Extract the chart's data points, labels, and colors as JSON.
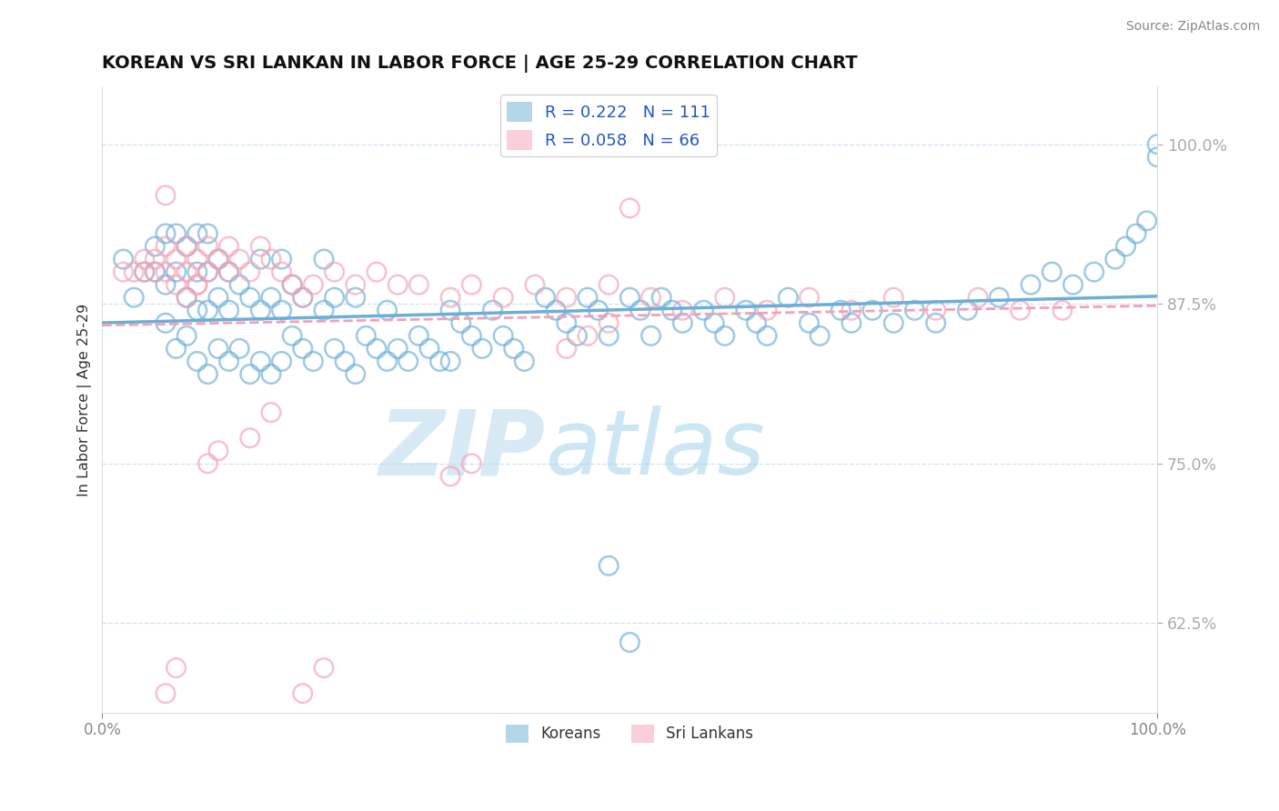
{
  "title": "KOREAN VS SRI LANKAN IN LABOR FORCE | AGE 25-29 CORRELATION CHART",
  "source_text": "Source: ZipAtlas.com",
  "ylabel": "In Labor Force | Age 25-29",
  "xlim": [
    0.0,
    1.0
  ],
  "ylim": [
    0.555,
    1.045
  ],
  "yticks": [
    0.625,
    0.75,
    0.875,
    1.0
  ],
  "ytick_labels": [
    "62.5%",
    "75.0%",
    "87.5%",
    "100.0%"
  ],
  "xticks": [
    0.0,
    1.0
  ],
  "xtick_labels": [
    "0.0%",
    "100.0%"
  ],
  "korean_color": "#6baed6",
  "srilanka_color": "#f4a0b5",
  "korean_R": 0.222,
  "korean_N": 111,
  "srilanka_R": 0.058,
  "srilanka_N": 66,
  "watermark_zip": "ZIP",
  "watermark_atlas": "atlas",
  "background_color": "#ffffff",
  "legend_label_korean": "Koreans",
  "legend_label_srilanka": "Sri Lankans",
  "title_fontsize": 14,
  "tick_color": "#4169e1",
  "grid_color": "#c8dff0",
  "korean_points_x": [
    0.02,
    0.03,
    0.04,
    0.05,
    0.05,
    0.06,
    0.06,
    0.06,
    0.07,
    0.07,
    0.07,
    0.08,
    0.08,
    0.08,
    0.09,
    0.09,
    0.09,
    0.09,
    0.1,
    0.1,
    0.1,
    0.1,
    0.11,
    0.11,
    0.11,
    0.12,
    0.12,
    0.12,
    0.13,
    0.13,
    0.14,
    0.14,
    0.15,
    0.15,
    0.15,
    0.16,
    0.16,
    0.17,
    0.17,
    0.17,
    0.18,
    0.18,
    0.19,
    0.19,
    0.2,
    0.21,
    0.21,
    0.22,
    0.22,
    0.23,
    0.24,
    0.24,
    0.25,
    0.26,
    0.27,
    0.27,
    0.28,
    0.29,
    0.3,
    0.31,
    0.32,
    0.33,
    0.33,
    0.34,
    0.35,
    0.36,
    0.37,
    0.38,
    0.39,
    0.4,
    0.42,
    0.43,
    0.44,
    0.45,
    0.46,
    0.47,
    0.48,
    0.5,
    0.51,
    0.52,
    0.53,
    0.54,
    0.55,
    0.57,
    0.58,
    0.59,
    0.61,
    0.62,
    0.63,
    0.65,
    0.67,
    0.68,
    0.7,
    0.71,
    0.73,
    0.75,
    0.77,
    0.79,
    0.82,
    0.85,
    0.88,
    0.9,
    0.92,
    0.94,
    0.96,
    0.97,
    0.98,
    0.99,
    1.0,
    1.0,
    0.48,
    0.5
  ],
  "korean_points_y": [
    0.91,
    0.88,
    0.9,
    0.9,
    0.92,
    0.86,
    0.89,
    0.93,
    0.84,
    0.9,
    0.93,
    0.85,
    0.88,
    0.92,
    0.83,
    0.87,
    0.9,
    0.93,
    0.82,
    0.87,
    0.9,
    0.93,
    0.84,
    0.88,
    0.91,
    0.83,
    0.87,
    0.9,
    0.84,
    0.89,
    0.82,
    0.88,
    0.83,
    0.87,
    0.91,
    0.82,
    0.88,
    0.83,
    0.87,
    0.91,
    0.85,
    0.89,
    0.84,
    0.88,
    0.83,
    0.87,
    0.91,
    0.84,
    0.88,
    0.83,
    0.82,
    0.88,
    0.85,
    0.84,
    0.83,
    0.87,
    0.84,
    0.83,
    0.85,
    0.84,
    0.83,
    0.87,
    0.83,
    0.86,
    0.85,
    0.84,
    0.87,
    0.85,
    0.84,
    0.83,
    0.88,
    0.87,
    0.86,
    0.85,
    0.88,
    0.87,
    0.85,
    0.88,
    0.87,
    0.85,
    0.88,
    0.87,
    0.86,
    0.87,
    0.86,
    0.85,
    0.87,
    0.86,
    0.85,
    0.88,
    0.86,
    0.85,
    0.87,
    0.86,
    0.87,
    0.86,
    0.87,
    0.86,
    0.87,
    0.88,
    0.89,
    0.9,
    0.89,
    0.9,
    0.91,
    0.92,
    0.93,
    0.94,
    0.99,
    1.0,
    0.67,
    0.61
  ],
  "srilanka_points_x": [
    0.02,
    0.03,
    0.04,
    0.04,
    0.05,
    0.05,
    0.06,
    0.06,
    0.07,
    0.07,
    0.08,
    0.08,
    0.09,
    0.09,
    0.1,
    0.1,
    0.11,
    0.12,
    0.12,
    0.13,
    0.14,
    0.15,
    0.16,
    0.17,
    0.18,
    0.19,
    0.2,
    0.22,
    0.24,
    0.26,
    0.28,
    0.3,
    0.33,
    0.35,
    0.38,
    0.41,
    0.44,
    0.48,
    0.52,
    0.55,
    0.59,
    0.63,
    0.67,
    0.71,
    0.75,
    0.79,
    0.83,
    0.87,
    0.91,
    0.44,
    0.46,
    0.48,
    0.5,
    0.33,
    0.35,
    0.19,
    0.21,
    0.14,
    0.16,
    0.06,
    0.07,
    0.1,
    0.11,
    0.08,
    0.09,
    0.06
  ],
  "srilanka_points_y": [
    0.9,
    0.9,
    0.9,
    0.91,
    0.9,
    0.91,
    0.9,
    0.92,
    0.89,
    0.91,
    0.9,
    0.92,
    0.89,
    0.91,
    0.9,
    0.92,
    0.91,
    0.9,
    0.92,
    0.91,
    0.9,
    0.92,
    0.91,
    0.9,
    0.89,
    0.88,
    0.89,
    0.9,
    0.89,
    0.9,
    0.89,
    0.89,
    0.88,
    0.89,
    0.88,
    0.89,
    0.88,
    0.89,
    0.88,
    0.87,
    0.88,
    0.87,
    0.88,
    0.87,
    0.88,
    0.87,
    0.88,
    0.87,
    0.87,
    0.84,
    0.85,
    0.86,
    0.95,
    0.74,
    0.75,
    0.57,
    0.59,
    0.77,
    0.79,
    0.57,
    0.59,
    0.75,
    0.76,
    0.88,
    0.89,
    0.96
  ],
  "korean_trend": [
    0.845,
    0.935
  ],
  "srilanka_trend": [
    0.884,
    0.89
  ]
}
